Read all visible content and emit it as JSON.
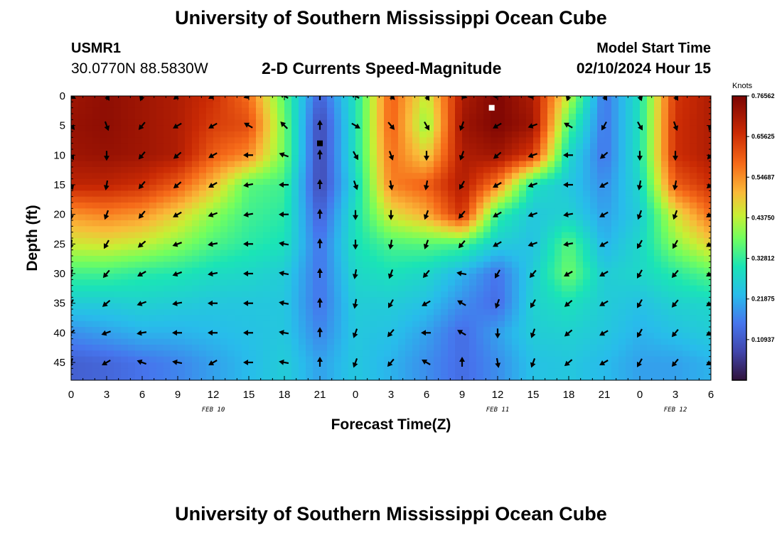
{
  "header": {
    "title": "University of Southern Mississippi Ocean Cube",
    "station_id": "USMR1",
    "station_coords": "30.0770N  88.5830W",
    "plot_title": "2-D Currents Speed-Magnitude",
    "model_start_label": "Model Start Time",
    "model_start_value": "02/10/2024 Hour 15"
  },
  "footer": {
    "title": "University of Southern Mississippi Ocean Cube"
  },
  "chart_data": {
    "type": "heatmap",
    "title": "2-D Currents Speed-Magnitude",
    "xlabel": "Forecast Time(Z)",
    "ylabel": "Depth (ft)",
    "x_hours": [
      0,
      3,
      6,
      9,
      12,
      15,
      18,
      21,
      24,
      27,
      30,
      33,
      36,
      39,
      42,
      45,
      48,
      51,
      54
    ],
    "x_tick_labels": [
      "0",
      "3",
      "6",
      "9",
      "12",
      "15",
      "18",
      "21",
      "0",
      "3",
      "6",
      "9",
      "12",
      "15",
      "18",
      "21",
      "0",
      "3",
      "6"
    ],
    "xlim_hours": [
      0,
      54
    ],
    "date_labels": [
      {
        "hour": 12,
        "label": "FEB 10"
      },
      {
        "hour": 36,
        "label": "FEB 11"
      },
      {
        "hour": 51,
        "label": "FEB 12"
      }
    ],
    "y_depths_ft": [
      0,
      5,
      10,
      15,
      20,
      25,
      30,
      35,
      40,
      45
    ],
    "ylim_ft": [
      0,
      48
    ],
    "y_inverted": true,
    "speed_knots": [
      [
        0.72,
        0.74,
        0.72,
        0.7,
        0.66,
        0.58,
        0.36,
        0.12,
        0.3,
        0.6,
        0.44,
        0.7,
        0.76,
        0.7,
        0.44,
        0.15,
        0.3,
        0.65,
        0.7
      ],
      [
        0.73,
        0.74,
        0.72,
        0.7,
        0.64,
        0.62,
        0.38,
        0.08,
        0.3,
        0.6,
        0.4,
        0.72,
        0.76,
        0.72,
        0.35,
        0.15,
        0.3,
        0.66,
        0.7
      ],
      [
        0.72,
        0.73,
        0.72,
        0.7,
        0.6,
        0.55,
        0.38,
        0.08,
        0.3,
        0.58,
        0.48,
        0.7,
        0.72,
        0.64,
        0.28,
        0.15,
        0.3,
        0.66,
        0.7
      ],
      [
        0.68,
        0.68,
        0.66,
        0.6,
        0.5,
        0.36,
        0.34,
        0.08,
        0.28,
        0.56,
        0.6,
        0.7,
        0.56,
        0.3,
        0.25,
        0.18,
        0.28,
        0.6,
        0.66
      ],
      [
        0.54,
        0.56,
        0.54,
        0.48,
        0.4,
        0.34,
        0.32,
        0.12,
        0.3,
        0.46,
        0.52,
        0.66,
        0.33,
        0.25,
        0.27,
        0.2,
        0.26,
        0.46,
        0.58
      ],
      [
        0.45,
        0.46,
        0.44,
        0.4,
        0.35,
        0.32,
        0.3,
        0.15,
        0.3,
        0.35,
        0.36,
        0.35,
        0.26,
        0.24,
        0.36,
        0.22,
        0.28,
        0.4,
        0.48
      ],
      [
        0.34,
        0.34,
        0.32,
        0.31,
        0.29,
        0.28,
        0.26,
        0.15,
        0.28,
        0.3,
        0.28,
        0.22,
        0.15,
        0.26,
        0.38,
        0.26,
        0.28,
        0.32,
        0.36
      ],
      [
        0.26,
        0.26,
        0.27,
        0.26,
        0.25,
        0.25,
        0.25,
        0.15,
        0.26,
        0.26,
        0.24,
        0.18,
        0.14,
        0.27,
        0.3,
        0.26,
        0.24,
        0.27,
        0.28
      ],
      [
        0.18,
        0.2,
        0.22,
        0.22,
        0.23,
        0.24,
        0.25,
        0.17,
        0.25,
        0.24,
        0.2,
        0.14,
        0.2,
        0.26,
        0.27,
        0.25,
        0.22,
        0.24,
        0.26
      ],
      [
        0.12,
        0.13,
        0.15,
        0.17,
        0.2,
        0.23,
        0.26,
        0.2,
        0.25,
        0.22,
        0.18,
        0.14,
        0.18,
        0.24,
        0.25,
        0.23,
        0.2,
        0.2,
        0.22
      ]
    ],
    "direction_deg": [
      [
        120,
        150,
        200,
        230,
        240,
        250,
        300,
        0,
        300,
        135,
        150,
        110,
        270,
        260,
        200,
        150,
        160,
        150,
        140
      ],
      [
        140,
        160,
        220,
        240,
        240,
        300,
        315,
        0,
        120,
        140,
        150,
        200,
        240,
        250,
        300,
        210,
        150,
        160,
        200
      ],
      [
        150,
        180,
        220,
        230,
        240,
        270,
        290,
        0,
        150,
        160,
        180,
        200,
        230,
        250,
        270,
        230,
        180,
        180,
        220
      ],
      [
        160,
        190,
        220,
        230,
        240,
        260,
        270,
        0,
        160,
        170,
        190,
        210,
        240,
        250,
        270,
        240,
        190,
        190,
        230
      ],
      [
        180,
        200,
        220,
        240,
        250,
        260,
        270,
        0,
        180,
        180,
        200,
        220,
        240,
        250,
        260,
        240,
        200,
        200,
        240
      ],
      [
        190,
        210,
        230,
        250,
        260,
        270,
        280,
        0,
        180,
        190,
        200,
        220,
        240,
        250,
        260,
        240,
        210,
        210,
        240
      ],
      [
        200,
        220,
        240,
        250,
        260,
        270,
        280,
        0,
        190,
        200,
        220,
        280,
        210,
        220,
        240,
        240,
        210,
        220,
        240
      ],
      [
        210,
        230,
        250,
        260,
        270,
        270,
        280,
        0,
        190,
        210,
        240,
        300,
        200,
        210,
        230,
        240,
        210,
        220,
        240
      ],
      [
        230,
        250,
        260,
        270,
        270,
        270,
        280,
        0,
        200,
        220,
        270,
        300,
        180,
        200,
        230,
        240,
        210,
        220,
        240
      ],
      [
        200,
        240,
        290,
        280,
        240,
        270,
        280,
        0,
        200,
        220,
        300,
        0,
        170,
        200,
        230,
        240,
        210,
        220,
        240
      ]
    ],
    "colorbar": {
      "label": "Knots",
      "min": 0.0,
      "max": 0.76562,
      "tick_labels": [
        "0.76562",
        "0.65625",
        "0.54687",
        "0.43750",
        "0.32812",
        "0.21875",
        "0.10937"
      ]
    },
    "markers": [
      {
        "hour": 35.5,
        "depth_ft": 2,
        "color": "#ffffff"
      },
      {
        "hour": 21,
        "depth_ft": 8,
        "color": "#000000"
      }
    ]
  }
}
